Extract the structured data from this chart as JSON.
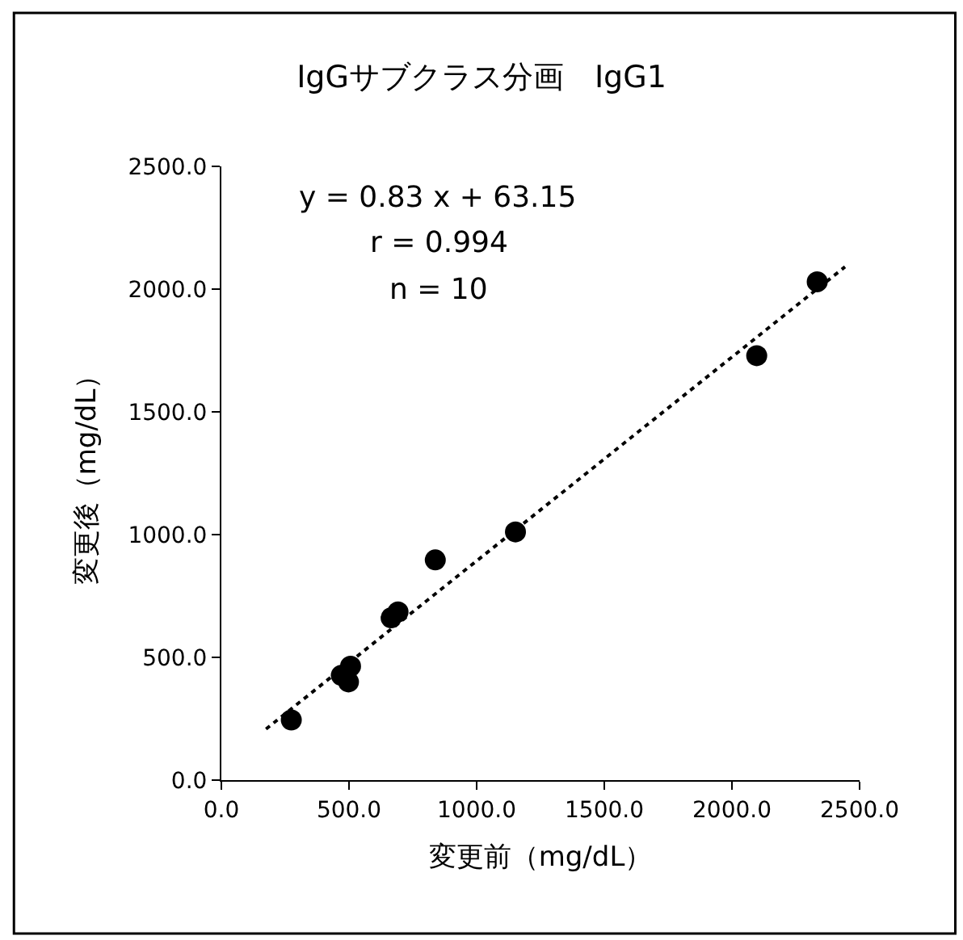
{
  "chart_data": {
    "type": "scatter",
    "title": "IgGサブクラス分画　IgG1",
    "xlabel": "変更前（mg/dL）",
    "ylabel": "変更後（mg/dL）",
    "annotations": [
      "y = 0.83 x + 63.15",
      "r = 0.994",
      "n = 10"
    ],
    "xlim": [
      0,
      2500
    ],
    "ylim": [
      0,
      2500
    ],
    "xticks": [
      {
        "value": 0,
        "label": "0.0"
      },
      {
        "value": 500,
        "label": "500.0"
      },
      {
        "value": 1000,
        "label": "1000.0"
      },
      {
        "value": 1500,
        "label": "1500.0"
      },
      {
        "value": 2000,
        "label": "2000.0"
      },
      {
        "value": 2500,
        "label": "2500.0"
      }
    ],
    "yticks": [
      {
        "value": 0,
        "label": "0.0"
      },
      {
        "value": 500,
        "label": "500.0"
      },
      {
        "value": 1000,
        "label": "1000.0"
      },
      {
        "value": 1500,
        "label": "1500.0"
      },
      {
        "value": 2000,
        "label": "2000.0"
      },
      {
        "value": 2500,
        "label": "2500.0"
      }
    ],
    "series": [
      {
        "marker": "circle",
        "color": "#000000",
        "x": [
          274,
          470,
          498,
          506,
          665,
          692,
          838,
          1152,
          2097,
          2334
        ],
        "values": [
          245,
          427,
          400,
          464,
          661,
          685,
          897,
          1011,
          1729,
          2030
        ]
      },
      {
        "type": "line",
        "marker": "none",
        "color": "#000000",
        "line_style": "dotted",
        "x": [
          175,
          2443
        ],
        "values": [
          208,
          2091
        ]
      }
    ]
  }
}
